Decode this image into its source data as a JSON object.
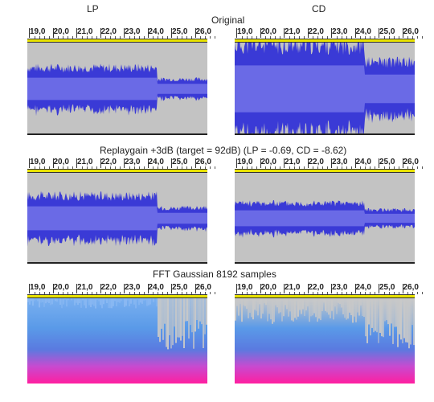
{
  "columns": {
    "left": "LP",
    "right": "CD"
  },
  "sections": {
    "original": "Original",
    "replaygain": "Replaygain +3dB (target = 92dB) (LP = -0.69, CD = -8.62)",
    "fft": "FFT Gaussian 8192 samples"
  },
  "ruler_ticks": [
    "19,0",
    "20,0",
    "21,0",
    "22,0",
    "23,0",
    "24,0",
    "25,0",
    "26,0"
  ],
  "colors": {
    "waveform": "#3a3ad6",
    "waveform_rms": "#6a6ae6",
    "track_bg": "#c3c3c3",
    "selection_bar": "#e8e200",
    "spectrogram_low": "#ff1fa0",
    "spectrogram_mid": "#3a7ae8",
    "spectrogram_high": "#c8c8c8"
  }
}
